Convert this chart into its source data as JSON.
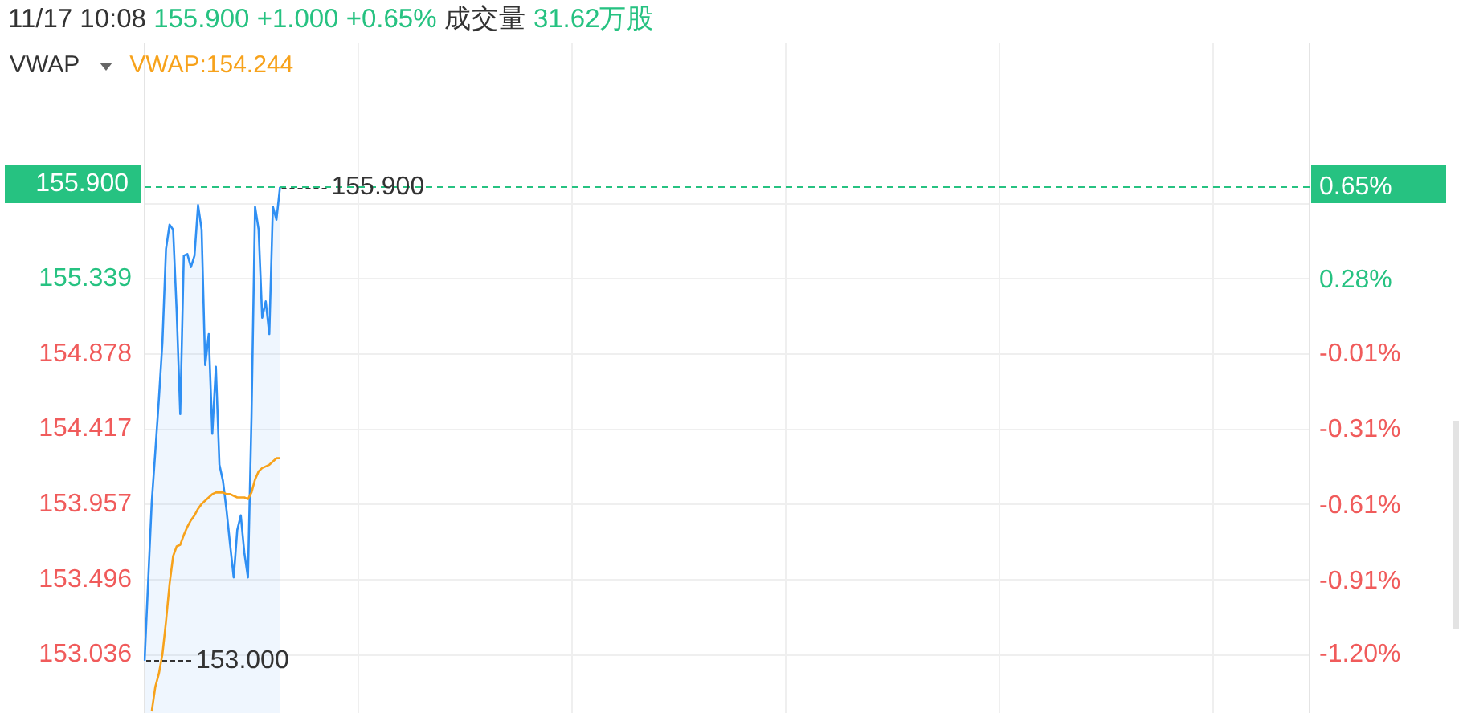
{
  "chart_data": {
    "type": "area",
    "title": "11/17 10:08 155.900 +1.000 +0.65% 成交量 31.62万股",
    "legend_title": "VWAP",
    "legend": "top left",
    "grid": true,
    "marker": "none",
    "tick_labels": "y",
    "categories": [
      null,
      null,
      null,
      null,
      null,
      null,
      null,
      null,
      null,
      null,
      null,
      null,
      null,
      null,
      null,
      null,
      null,
      null,
      null,
      null,
      null,
      null,
      null,
      null,
      null,
      null,
      null,
      null,
      null,
      null,
      null,
      null,
      null,
      null,
      null,
      null,
      null,
      null,
      null,
      null,
      null,
      null,
      null,
      null,
      null,
      null,
      null,
      null,
      null,
      null,
      null,
      null,
      null,
      null,
      null,
      null,
      null,
      null,
      null,
      null,
      null,
      null,
      null,
      null,
      null,
      null,
      null,
      null,
      null,
      null,
      null,
      null,
      null,
      null,
      null,
      null,
      null,
      null,
      null,
      null,
      null,
      null,
      null,
      null,
      null,
      null,
      null,
      null,
      null,
      null,
      null,
      null,
      null,
      null,
      null,
      null,
      null,
      null,
      null,
      null,
      null,
      null,
      null,
      null,
      null,
      null,
      null,
      null,
      null,
      null,
      null,
      null,
      null,
      null,
      null,
      null,
      null,
      null,
      null,
      null,
      null,
      null,
      null,
      null,
      null,
      null,
      null,
      null,
      null,
      null,
      null,
      null,
      null,
      null,
      null,
      null,
      null,
      null,
      null,
      null,
      null,
      null,
      null,
      null,
      null,
      null,
      null,
      null,
      null,
      null,
      null,
      null,
      null,
      null,
      null,
      null,
      null,
      null,
      null,
      null,
      null,
      null,
      null,
      null,
      null,
      null,
      null,
      null,
      null,
      null,
      null,
      null,
      null,
      null,
      null,
      null,
      null,
      null,
      null,
      null,
      null,
      null,
      null,
      null,
      null,
      null,
      null,
      null,
      null,
      null,
      null,
      null,
      null,
      null,
      null,
      null,
      null,
      null,
      null,
      null,
      null,
      null,
      null,
      null,
      null,
      null,
      null,
      null,
      null,
      null,
      null,
      null,
      null,
      null,
      null,
      null,
      null,
      null,
      null,
      null,
      null,
      null,
      null,
      null,
      null,
      null,
      null,
      null,
      null,
      null,
      null,
      null,
      null,
      null,
      null,
      null,
      null,
      null,
      null,
      null,
      null,
      null,
      null,
      null,
      null,
      null,
      null,
      null,
      null,
      null,
      null,
      null,
      null,
      null,
      null,
      null,
      null,
      null,
      null,
      null,
      null,
      null,
      null,
      null,
      null,
      null,
      null,
      null,
      null,
      null,
      null,
      null,
      null,
      null,
      null,
      null,
      null,
      null,
      null,
      null,
      null,
      null,
      null,
      null,
      null,
      null,
      null,
      null,
      null,
      null,
      null,
      null,
      null,
      null,
      null,
      null,
      null,
      null,
      null,
      null,
      null,
      null,
      null,
      null,
      null,
      null,
      null,
      null,
      null,
      null,
      null,
      null,
      null,
      null,
      null,
      null,
      null,
      null,
      null,
      null,
      null,
      null,
      null,
      null,
      null,
      null,
      null,
      null
    ],
    "series": [
      {
        "color": "#2f8ff3",
        "values": [
          153.0,
          153.49,
          153.97,
          154.28,
          154.6,
          154.95,
          155.52,
          155.67,
          155.64,
          155.14,
          154.51,
          155.48,
          155.49,
          155.41,
          155.48,
          155.79,
          155.64,
          154.81,
          155.0,
          154.39,
          154.8,
          154.2,
          154.1,
          153.92,
          153.71,
          153.51,
          153.8,
          153.89,
          153.66,
          153.51,
          154.49,
          155.78,
          155.64,
          155.1,
          155.2,
          155.0,
          155.78,
          155.7,
          155.9,
          null,
          null,
          null,
          null,
          null,
          null,
          null,
          null,
          null,
          null,
          null,
          null,
          null,
          null,
          null,
          null,
          null,
          null,
          null,
          null,
          null,
          null,
          null,
          null,
          null,
          null,
          null,
          null,
          null,
          null,
          null,
          null,
          null,
          null,
          null,
          null,
          null,
          null,
          null,
          null,
          null,
          null,
          null,
          null,
          null,
          null,
          null,
          null,
          null,
          null,
          null,
          null,
          null,
          null,
          null,
          null,
          null,
          null,
          null,
          null,
          null,
          null,
          null,
          null,
          null,
          null,
          null,
          null,
          null,
          null,
          null,
          null,
          null,
          null,
          null,
          null,
          null,
          null,
          null,
          null,
          null,
          null,
          null,
          null,
          null,
          null,
          null,
          null,
          null,
          null,
          null,
          null,
          null,
          null,
          null,
          null,
          null,
          null,
          null,
          null,
          null,
          null,
          null,
          null,
          null,
          null,
          null,
          null,
          null,
          null,
          null,
          null,
          null,
          null,
          null,
          null,
          null,
          null,
          null,
          null,
          null,
          null,
          null,
          null,
          null,
          null,
          null,
          null,
          null,
          null,
          null,
          null,
          null,
          null,
          null,
          null,
          null,
          null,
          null,
          null,
          null,
          null,
          null,
          null,
          null,
          null,
          null,
          null,
          null,
          null,
          null,
          null,
          null,
          null,
          null,
          null,
          null,
          null,
          null,
          null,
          null,
          null,
          null,
          null,
          null,
          null,
          null,
          null,
          null,
          null,
          null,
          null,
          null,
          null,
          null,
          null,
          null,
          null,
          null,
          null,
          null,
          null,
          null,
          null,
          null,
          null,
          null,
          null,
          null,
          null,
          null,
          null,
          null,
          null,
          null,
          null,
          null,
          null,
          null,
          null,
          null,
          null,
          null,
          null,
          null,
          null,
          null,
          null,
          null,
          null,
          null,
          null,
          null,
          null,
          null,
          null,
          null,
          null,
          null,
          null,
          null,
          null,
          null,
          null,
          null,
          null,
          null,
          null,
          null,
          null,
          null,
          null,
          null,
          null,
          null,
          null,
          null,
          null,
          null,
          null,
          null,
          null,
          null,
          null,
          null,
          null,
          null,
          null,
          null,
          null,
          null,
          null,
          null,
          null,
          null,
          null,
          null,
          null,
          null,
          null,
          null,
          null,
          null,
          null,
          null,
          null,
          null,
          null,
          null,
          null,
          null,
          null,
          null,
          null,
          null,
          null,
          null,
          null,
          null,
          null,
          null,
          null,
          null,
          null,
          null,
          null,
          null,
          null,
          null
        ]
      },
      {
        "name": "VWAP:154.244",
        "type": "line",
        "color": "#f7a21b",
        "values": [
          null,
          null,
          152.69,
          152.84,
          152.92,
          153.04,
          153.24,
          153.47,
          153.64,
          153.7,
          153.71,
          153.77,
          153.82,
          153.86,
          153.89,
          153.93,
          153.96,
          153.98,
          154.0,
          154.02,
          154.03,
          154.03,
          154.03,
          154.02,
          154.02,
          154.01,
          154.0,
          154.0,
          154.0,
          153.99,
          154.03,
          154.11,
          154.16,
          154.18,
          154.19,
          154.2,
          154.22,
          154.24,
          154.24,
          null,
          null,
          null,
          null,
          null,
          null,
          null,
          null,
          null,
          null,
          null,
          null,
          null,
          null,
          null,
          null,
          null,
          null,
          null,
          null,
          null,
          null,
          null,
          null,
          null,
          null,
          null,
          null,
          null,
          null,
          null,
          null,
          null,
          null,
          null,
          null,
          null,
          null,
          null,
          null,
          null,
          null,
          null,
          null,
          null,
          null,
          null,
          null,
          null,
          null,
          null,
          null,
          null,
          null,
          null,
          null,
          null,
          null,
          null,
          null,
          null,
          null,
          null,
          null,
          null,
          null,
          null,
          null,
          null,
          null,
          null,
          null,
          null,
          null,
          null,
          null,
          null,
          null,
          null,
          null,
          null,
          null,
          null,
          null,
          null,
          null,
          null,
          null,
          null,
          null,
          null,
          null,
          null,
          null,
          null,
          null,
          null,
          null,
          null,
          null,
          null,
          null,
          null,
          null,
          null,
          null,
          null,
          null,
          null,
          null,
          null,
          null,
          null,
          null,
          null,
          null,
          null,
          null,
          null,
          null,
          null,
          null,
          null,
          null,
          null,
          null,
          null,
          null,
          null,
          null,
          null,
          null,
          null,
          null,
          null,
          null,
          null,
          null,
          null,
          null,
          null,
          null,
          null,
          null,
          null,
          null,
          null,
          null,
          null,
          null,
          null,
          null,
          null,
          null,
          null,
          null,
          null,
          null,
          null,
          null,
          null,
          null,
          null,
          null,
          null,
          null,
          null,
          null,
          null,
          null,
          null,
          null,
          null,
          null,
          null,
          null,
          null,
          null,
          null,
          null,
          null,
          null,
          null,
          null,
          null,
          null,
          null,
          null,
          null,
          null,
          null,
          null,
          null,
          null,
          null,
          null,
          null,
          null,
          null,
          null,
          null,
          null,
          null,
          null,
          null,
          null,
          null,
          null,
          null,
          null,
          null,
          null,
          null,
          null,
          null,
          null,
          null,
          null,
          null,
          null,
          null,
          null,
          null,
          null,
          null,
          null,
          null,
          null,
          null,
          null,
          null,
          null,
          null,
          null,
          null,
          null,
          null,
          null,
          null,
          null,
          null,
          null,
          null,
          null,
          null,
          null,
          null,
          null,
          null,
          null,
          null,
          null,
          null,
          null,
          null,
          null,
          null,
          null,
          null,
          null,
          null,
          null,
          null,
          null,
          null,
          null,
          null,
          null,
          null,
          null,
          null,
          null,
          null,
          null,
          null,
          null,
          null,
          null,
          null,
          null,
          null,
          null,
          null,
          null,
          null,
          null,
          null,
          null,
          null
        ]
      }
    ],
    "ylim": [
      152.68,
      156.78
    ],
    "yticks": [
      153.036,
      153.496,
      153.957,
      154.417,
      154.878,
      155.339,
      {
        "value": 155.799,
        "label": null
      }
    ],
    "y2lim": [
      -1.43,
      1.2184
    ],
    "y2ticks": [
      {
        "value": -1.2,
        "label": "-1.20%"
      },
      {
        "value": -0.91,
        "label": "-0.91%"
      },
      {
        "value": -0.61,
        "label": "-0.61%"
      },
      {
        "value": -0.31,
        "label": "-0.31%"
      },
      {
        "value": -0.01,
        "label": "-0.01%"
      },
      {
        "value": 0.28,
        "label": "0.28%"
      },
      {
        "value": 0.58,
        "label": null
      },
      {
        "value": 0.65,
        "label": "0.65%"
      }
    ],
    "ref_lines": [
      {
        "axis": "y",
        "value": 155.9,
        "label": "155.900",
        "color": "#26c281",
        "line_style": "dashed"
      }
    ],
    "annotations": [
      {
        "text": "155.900",
        "y": 155.9
      },
      "153.000"
    ]
  }
}
